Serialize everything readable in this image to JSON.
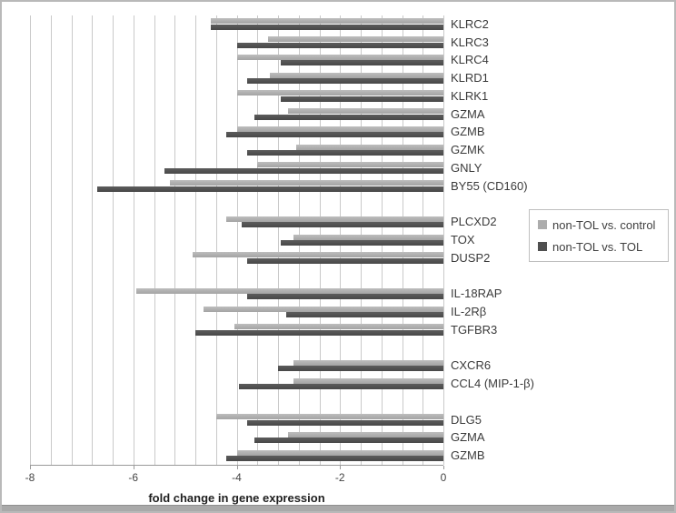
{
  "chart_data": {
    "type": "bar",
    "orientation": "horizontal",
    "xlabel": "fold change in gene expression",
    "xlim": [
      -8,
      0
    ],
    "x_ticks": [
      -8,
      -6,
      -4,
      -2,
      0
    ],
    "gridline_interval": 0.4,
    "grid": true,
    "legend_position": "middle-right",
    "series": [
      {
        "name": "non-TOL vs. control",
        "color": "#ACACAC"
      },
      {
        "name": "non-TOL vs. TOL",
        "color": "#4F4F4F"
      }
    ],
    "groups": [
      {
        "genes": [
          {
            "label": "KLRC2",
            "control": -4.5,
            "tol": -4.5
          },
          {
            "label": "KLRC3",
            "control": -3.4,
            "tol": -4.0
          },
          {
            "label": "KLRC4",
            "control": -4.0,
            "tol": -3.15
          },
          {
            "label": "KLRD1",
            "control": -3.35,
            "tol": -3.8
          },
          {
            "label": "KLRK1",
            "control": -4.0,
            "tol": -3.15
          },
          {
            "label": "GZMA",
            "control": -3.0,
            "tol": -3.65
          },
          {
            "label": "GZMB",
            "control": -4.0,
            "tol": -4.2
          },
          {
            "label": "GZMK",
            "control": -2.85,
            "tol": -3.8
          },
          {
            "label": "GNLY",
            "control": -3.6,
            "tol": -5.4
          },
          {
            "label": "BY55 (CD160)",
            "control": -5.3,
            "tol": -6.7
          }
        ]
      },
      {
        "genes": [
          {
            "label": "PLCXD2",
            "control": -4.2,
            "tol": -3.9
          },
          {
            "label": "TOX",
            "control": -2.9,
            "tol": -3.15
          },
          {
            "label": "DUSP2",
            "control": -4.85,
            "tol": -3.8
          }
        ]
      },
      {
        "genes": [
          {
            "label": "IL-18RAP",
            "control": -5.95,
            "tol": -3.8
          },
          {
            "label": "IL-2Rβ",
            "control": -4.65,
            "tol": -3.05
          },
          {
            "label": "TGFBR3",
            "control": -4.05,
            "tol": -4.8
          }
        ]
      },
      {
        "genes": [
          {
            "label": "CXCR6",
            "control": -2.9,
            "tol": -3.2
          },
          {
            "label": "CCL4 (MIP-1-β)",
            "control": -2.9,
            "tol": -3.95
          }
        ]
      },
      {
        "genes": [
          {
            "label": "DLG5",
            "control": -4.4,
            "tol": -3.8
          },
          {
            "label": "GZMA",
            "control": -3.0,
            "tol": -3.65
          },
          {
            "label": "GZMB",
            "control": -4.0,
            "tol": -4.2
          }
        ]
      }
    ]
  }
}
